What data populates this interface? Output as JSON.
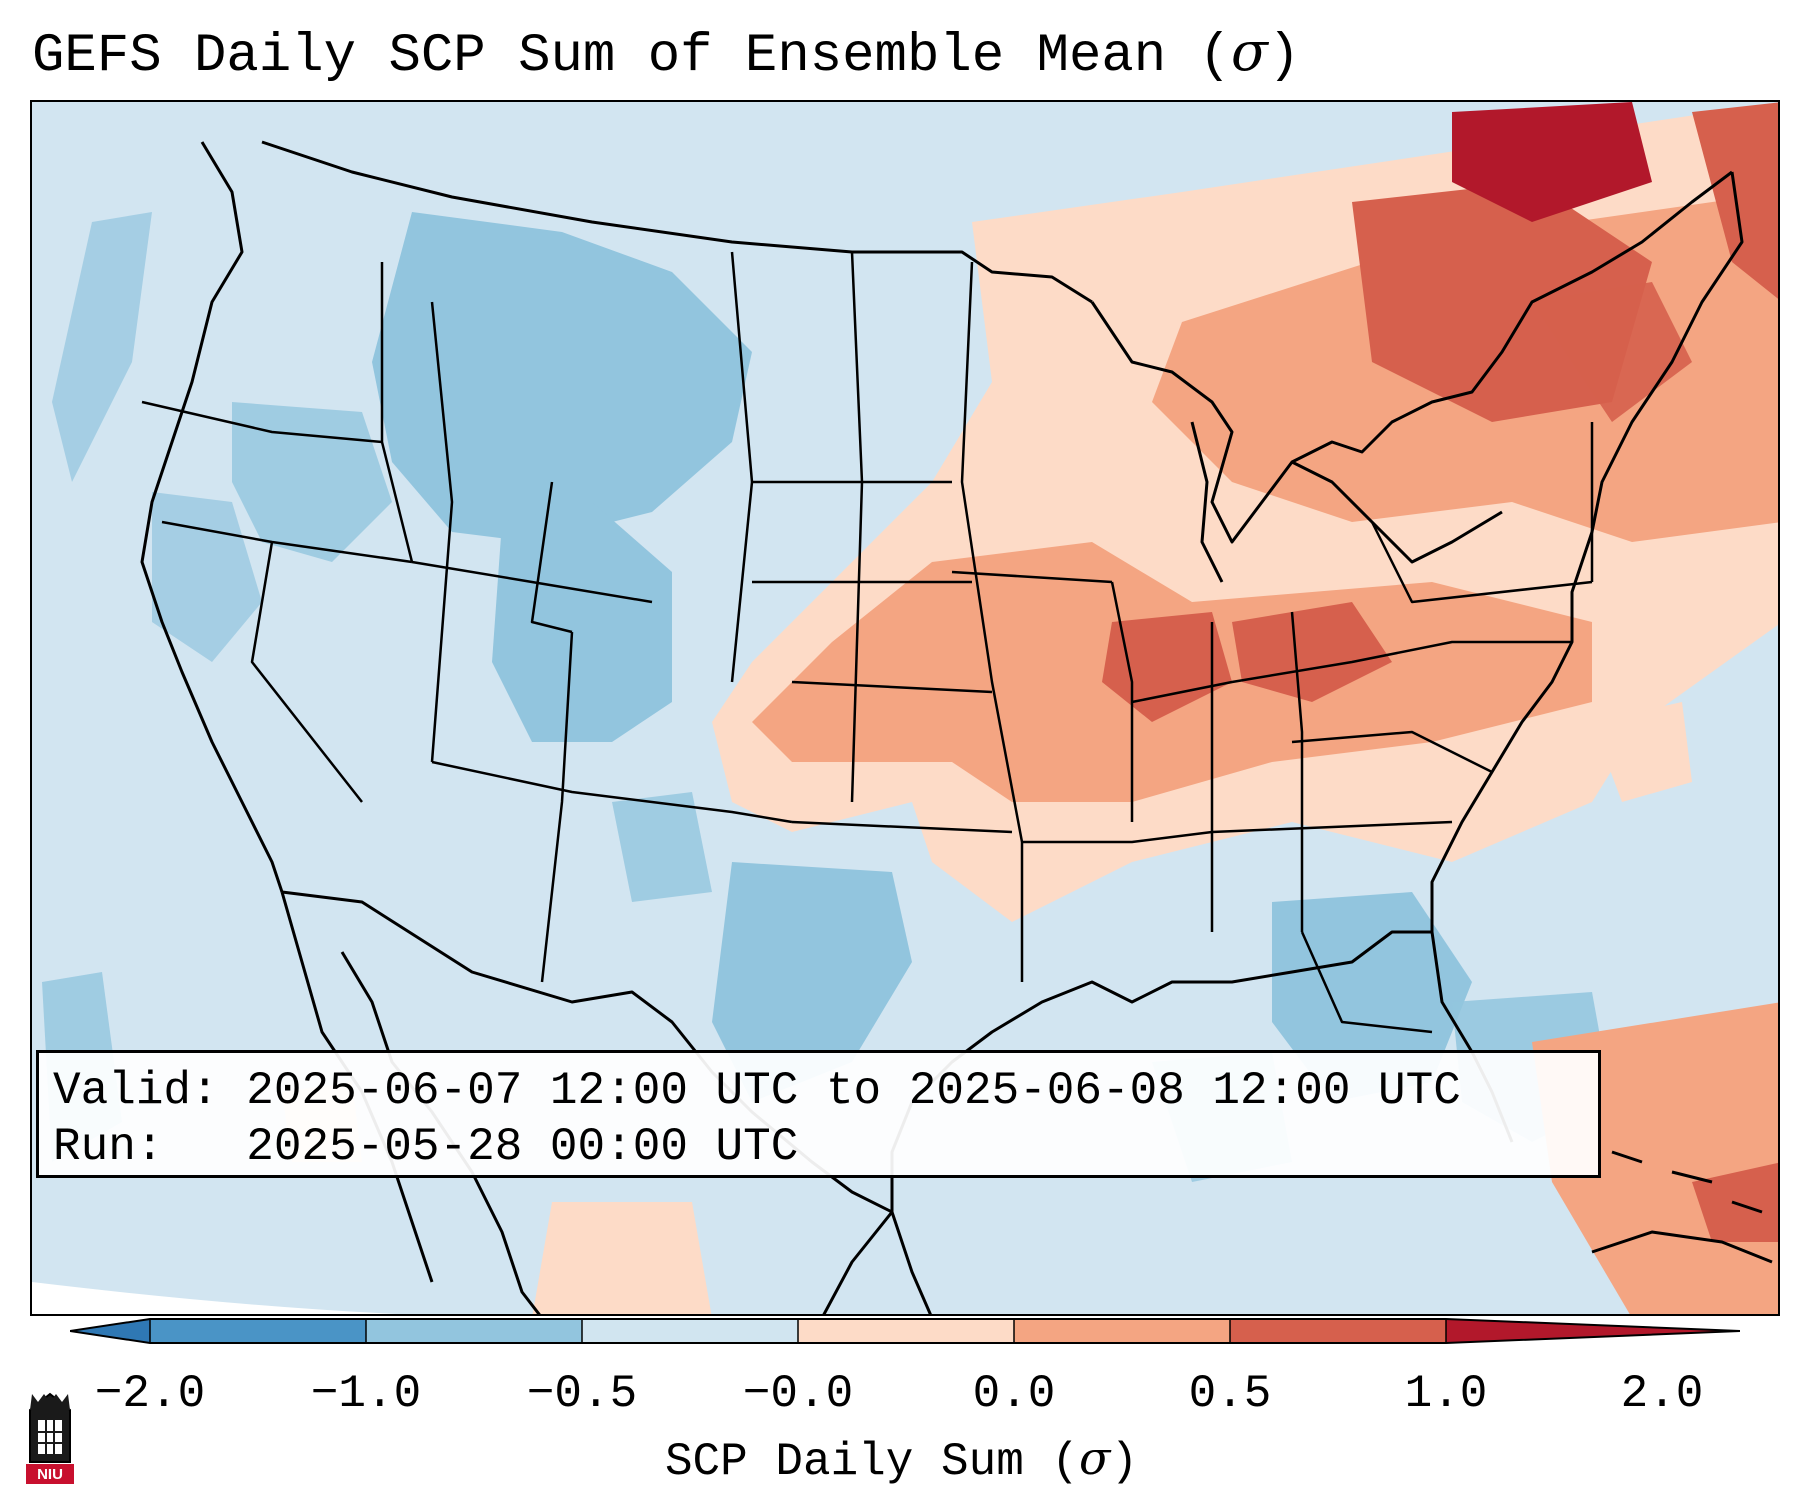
{
  "title": {
    "prefix": "GEFS Daily SCP Sum of Ensemble Mean (",
    "symbol": "σ",
    "suffix": ")"
  },
  "info_box": {
    "valid_label": "Valid:",
    "valid_value": "2025-06-07 12:00 UTC to 2025-06-08 12:00 UTC",
    "run_label": "Run:",
    "run_value": "2025-05-28 00:00 UTC"
  },
  "colorbar": {
    "label_prefix": "SCP Daily Sum (",
    "label_symbol": "σ",
    "label_suffix": ")",
    "ticks": [
      "−2.0",
      "−1.0",
      "−0.5",
      "−0.0",
      "0.0",
      "0.5",
      "1.0",
      "2.0"
    ],
    "colors": {
      "extend_low": "#2f78b4",
      "bin_neg2_neg1": "#4a94c6",
      "bin_neg1_neg05": "#92c5de",
      "bin_neg05_0": "#d1e5f0",
      "bin_0_05": "#fddbc7",
      "bin_05_1": "#f4a582",
      "bin_1_2": "#d6604d",
      "extend_high": "#b2182b"
    }
  },
  "logo": {
    "text": "NIU"
  }
}
